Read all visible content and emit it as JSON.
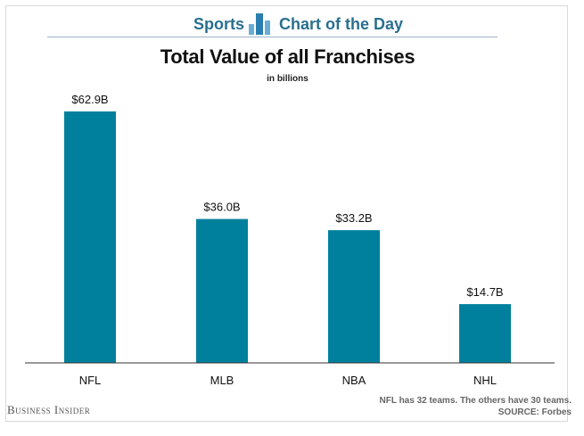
{
  "header": {
    "left_label": "Sports",
    "right_label": "Chart of the Day",
    "logo_icon": "bar-chart-icon"
  },
  "footer": {
    "brand": "Business Insider",
    "note": "NFL has 32 teams. The others have 30 teams.",
    "source": "SOURCE: Forbes"
  },
  "colors": {
    "bar": "#00809d",
    "header_text": "#2a6f8f",
    "axis": "#333333"
  },
  "chart_data": {
    "type": "bar",
    "title": "Total Value of all Franchises",
    "subtitle": "in billions",
    "categories": [
      "NFL",
      "MLB",
      "NBA",
      "NHL"
    ],
    "values": [
      62.9,
      36.0,
      33.2,
      14.7
    ],
    "value_labels": [
      "$62.9B",
      "$36.0B",
      "$33.2B",
      "$14.7B"
    ],
    "unit": "billions USD",
    "ylim": [
      0,
      70
    ],
    "grid": false,
    "legend": "none"
  }
}
